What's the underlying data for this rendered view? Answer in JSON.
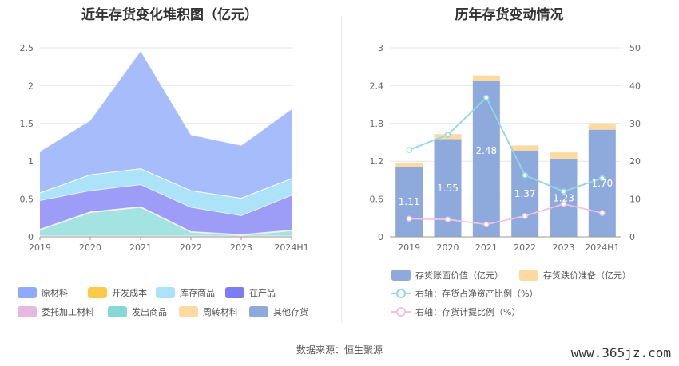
{
  "source_text": "数据来源：恒生聚源",
  "watermark": "www.365jz.com",
  "chart_data": [
    {
      "type": "area",
      "title": "近年存货变化堆积图（亿元）",
      "x": [
        "2019",
        "2020",
        "2021",
        "2022",
        "2023",
        "2024H1"
      ],
      "yticks": [
        "0",
        "0.5",
        "1",
        "1.5",
        "2",
        "2.5"
      ],
      "ylim": [
        0,
        2.5
      ],
      "grid": true,
      "series": [
        {
          "name": "原材料",
          "color": "#a6bcfb",
          "values": [
            0.55,
            0.72,
            1.56,
            0.74,
            0.7,
            0.92
          ]
        },
        {
          "name": "开发成本",
          "color": "#fcc94a",
          "values": [
            0,
            0,
            0,
            0,
            0,
            0
          ]
        },
        {
          "name": "库存商品",
          "color": "#ace3f8",
          "values": [
            0.1,
            0.21,
            0.21,
            0.22,
            0.23,
            0.22
          ]
        },
        {
          "name": "在产品",
          "color": "#9d9cf6",
          "values": [
            0.38,
            0.28,
            0.29,
            0.32,
            0.25,
            0.46
          ]
        },
        {
          "name": "委托加工材料",
          "color": "#e8b9e0",
          "values": [
            0.01,
            0.01,
            0.01,
            0.01,
            0.01,
            0.01
          ]
        },
        {
          "name": "发出商品",
          "color": "#a3e3e2",
          "values": [
            0.08,
            0.31,
            0.38,
            0.05,
            0.01,
            0.07
          ]
        },
        {
          "name": "周转材料",
          "color": "#fcdaa0",
          "values": [
            0.01,
            0.01,
            0.01,
            0.01,
            0.01,
            0.01
          ]
        },
        {
          "name": "其他存货",
          "color": "#8eaadc",
          "values": [
            0,
            0,
            0,
            0,
            0,
            0
          ]
        }
      ]
    },
    {
      "type": "bar",
      "title": "历年存货变动情况",
      "categories": [
        "2019",
        "2020",
        "2021",
        "2022",
        "2023",
        "2024H1"
      ],
      "yticks_left": [
        "0",
        "0.6",
        "1.2",
        "1.8",
        "2.4",
        "3"
      ],
      "yticks_right": [
        "0",
        "10",
        "20",
        "30",
        "40",
        "50"
      ],
      "ylim_left": [
        0,
        3
      ],
      "ylim_right": [
        0,
        50
      ],
      "grid": true,
      "series": [
        {
          "name": "存货账面价值（亿元）",
          "color": "#8eaadc",
          "axis": "left",
          "values": [
            1.11,
            1.55,
            2.48,
            1.37,
            1.23,
            1.7
          ],
          "labels": [
            "1.11",
            "1.55",
            "2.48",
            "1.37",
            "1.23",
            "1.70"
          ]
        },
        {
          "name": "存货跌价准备（亿元）",
          "color": "#fcdaa0",
          "axis": "left",
          "values": [
            0.06,
            0.08,
            0.08,
            0.08,
            0.11,
            0.1
          ]
        },
        {
          "name": "右轴：存货占净资产比例（%）",
          "color": "#8fd9e2",
          "axis": "right",
          "values": [
            23.0,
            27.0,
            36.8,
            16.3,
            12.0,
            15.5
          ]
        },
        {
          "name": "右轴：存货计提比例（%）",
          "color": "#f0c3e2",
          "axis": "right",
          "values": [
            4.8,
            4.6,
            3.3,
            5.5,
            8.7,
            6.3
          ]
        }
      ]
    }
  ]
}
